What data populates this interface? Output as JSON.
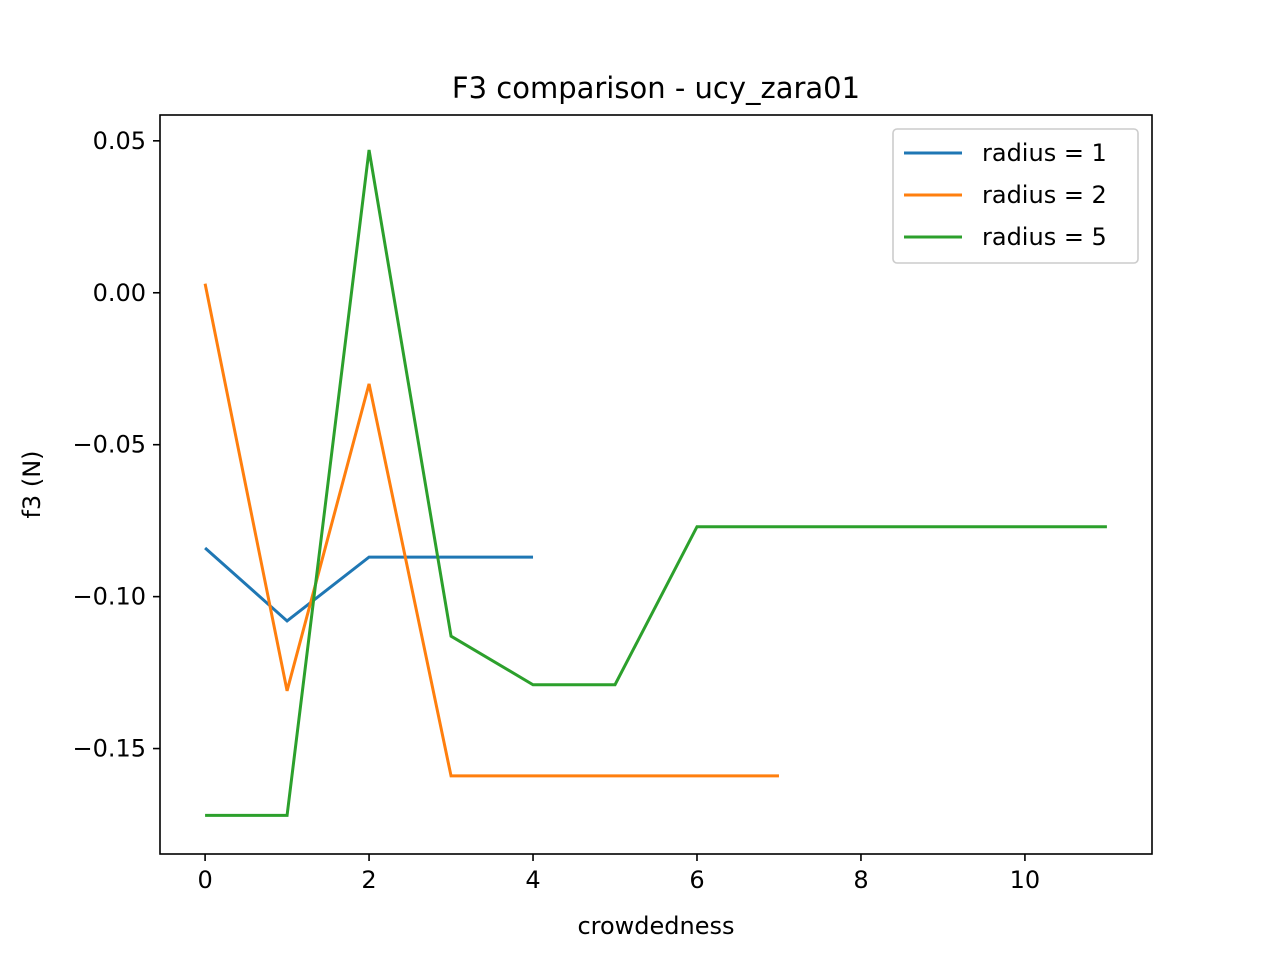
{
  "chart_data": {
    "type": "line",
    "title": "F3 comparison - ucy_zara01",
    "xlabel": "crowdedness",
    "ylabel": "f3 (N)",
    "xlim": [
      -0.55,
      11.55
    ],
    "ylim": [
      -0.1847,
      0.0585
    ],
    "xticks": [
      0,
      2,
      4,
      6,
      8,
      10
    ],
    "xtick_labels": [
      "0",
      "2",
      "4",
      "6",
      "8",
      "10"
    ],
    "yticks": [
      -0.15,
      -0.1,
      -0.05,
      0.0,
      0.05
    ],
    "ytick_labels": [
      "−0.15",
      "−0.10",
      "−0.05",
      "0.00",
      "0.05"
    ],
    "grid": false,
    "legend_position": "upper right",
    "series": [
      {
        "name": "radius = 1",
        "color": "#1f77b4",
        "x": [
          0,
          1,
          2,
          3,
          4
        ],
        "y": [
          -0.084,
          -0.108,
          -0.087,
          -0.087,
          -0.087
        ]
      },
      {
        "name": "radius = 2",
        "color": "#ff7f0e",
        "x": [
          0,
          1,
          2,
          3,
          4,
          5,
          6,
          7
        ],
        "y": [
          0.003,
          -0.131,
          -0.03,
          -0.159,
          -0.159,
          -0.159,
          -0.159,
          -0.159
        ]
      },
      {
        "name": "radius = 5",
        "color": "#2ca02c",
        "x": [
          0,
          1,
          2,
          3,
          4,
          5,
          6,
          7,
          8,
          9,
          10,
          11
        ],
        "y": [
          -0.172,
          -0.172,
          0.047,
          -0.113,
          -0.129,
          -0.129,
          -0.077,
          -0.077,
          -0.077,
          -0.077,
          -0.077,
          -0.077
        ]
      }
    ]
  }
}
